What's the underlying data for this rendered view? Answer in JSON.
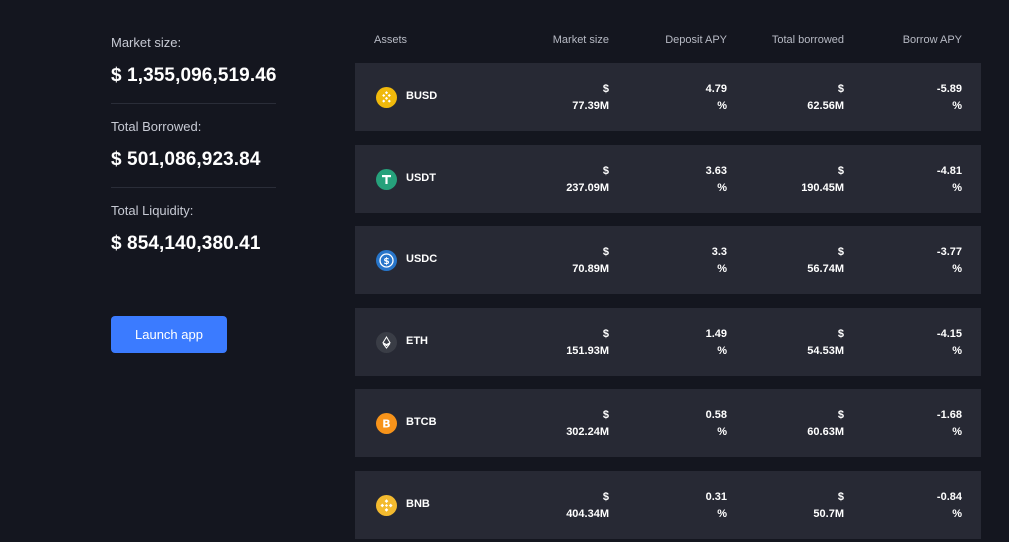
{
  "stats": {
    "market_size_label": "Market size:",
    "market_size_value": "$ 1,355,096,519.46",
    "total_borrowed_label": "Total Borrowed:",
    "total_borrowed_value": "$ 501,086,923.84",
    "total_liquidity_label": "Total Liquidity:",
    "total_liquidity_value": "$ 854,140,380.41"
  },
  "launch_button": {
    "label": "Launch app"
  },
  "table": {
    "headers": {
      "assets": "Assets",
      "market_size": "Market size",
      "deposit_apy": "Deposit APY",
      "total_borrowed": "Total borrowed",
      "borrow_apy": "Borrow APY"
    },
    "rows": [
      {
        "asset": "BUSD",
        "icon": "busd-icon",
        "market_symbol": "$",
        "market_value": "77.39M",
        "deposit_value": "4.79",
        "deposit_unit": "%",
        "borrowed_symbol": "$",
        "borrowed_value": "62.56M",
        "borrow_value": "-5.89",
        "borrow_unit": "%"
      },
      {
        "asset": "USDT",
        "icon": "usdt-icon",
        "market_symbol": "$",
        "market_value": "237.09M",
        "deposit_value": "3.63",
        "deposit_unit": "%",
        "borrowed_symbol": "$",
        "borrowed_value": "190.45M",
        "borrow_value": "-4.81",
        "borrow_unit": "%"
      },
      {
        "asset": "USDC",
        "icon": "usdc-icon",
        "market_symbol": "$",
        "market_value": "70.89M",
        "deposit_value": "3.3",
        "deposit_unit": "%",
        "borrowed_symbol": "$",
        "borrowed_value": "56.74M",
        "borrow_value": "-3.77",
        "borrow_unit": "%"
      },
      {
        "asset": "ETH",
        "icon": "eth-icon",
        "market_symbol": "$",
        "market_value": "151.93M",
        "deposit_value": "1.49",
        "deposit_unit": "%",
        "borrowed_symbol": "$",
        "borrowed_value": "54.53M",
        "borrow_value": "-4.15",
        "borrow_unit": "%"
      },
      {
        "asset": "BTCB",
        "icon": "btcb-icon",
        "market_symbol": "$",
        "market_value": "302.24M",
        "deposit_value": "0.58",
        "deposit_unit": "%",
        "borrowed_symbol": "$",
        "borrowed_value": "60.63M",
        "borrow_value": "-1.68",
        "borrow_unit": "%"
      },
      {
        "asset": "BNB",
        "icon": "bnb-icon",
        "market_symbol": "$",
        "market_value": "404.34M",
        "deposit_value": "0.31",
        "deposit_unit": "%",
        "borrowed_symbol": "$",
        "borrowed_value": "50.7M",
        "borrow_value": "-0.84",
        "borrow_unit": "%"
      }
    ]
  },
  "colors": {
    "background": "#14161f",
    "row_background": "#272934",
    "accent": "#3b7bff",
    "busd": "#f0b90b",
    "usdt": "#26a17b",
    "usdc": "#2775ca",
    "eth": "#3a3d46",
    "btcb": "#f7931a",
    "bnb": "#f3ba2f"
  }
}
